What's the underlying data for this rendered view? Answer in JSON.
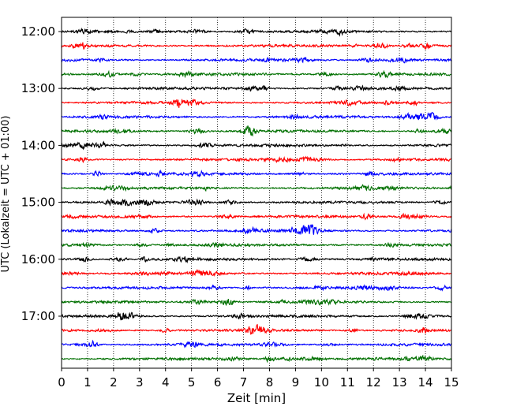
{
  "chart_data": {
    "type": "line",
    "title": "",
    "xlabel": "Zeit  [min]",
    "ylabel": "UTC (Lokalzeit = UTC + 01:00)",
    "xlim": [
      0,
      15
    ],
    "x_ticks": [
      0,
      1,
      2,
      3,
      4,
      5,
      6,
      7,
      8,
      9,
      10,
      11,
      12,
      13,
      14,
      15
    ],
    "y_tick_labels": [
      "12:00",
      "13:00",
      "14:00",
      "15:00",
      "16:00",
      "17:00"
    ],
    "grid": "vertical dotted",
    "trace_interval_minutes": 15,
    "traces": [
      {
        "start": "12:00",
        "color": "#000000"
      },
      {
        "start": "12:15",
        "color": "#ff0000"
      },
      {
        "start": "12:30",
        "color": "#0000ff"
      },
      {
        "start": "12:45",
        "color": "#007000"
      },
      {
        "start": "13:00",
        "color": "#000000"
      },
      {
        "start": "13:15",
        "color": "#ff0000"
      },
      {
        "start": "13:30",
        "color": "#0000ff"
      },
      {
        "start": "13:45",
        "color": "#007000"
      },
      {
        "start": "14:00",
        "color": "#000000"
      },
      {
        "start": "14:15",
        "color": "#ff0000"
      },
      {
        "start": "14:30",
        "color": "#0000ff"
      },
      {
        "start": "14:45",
        "color": "#007000"
      },
      {
        "start": "15:00",
        "color": "#000000"
      },
      {
        "start": "15:15",
        "color": "#ff0000"
      },
      {
        "start": "15:30",
        "color": "#0000ff"
      },
      {
        "start": "15:45",
        "color": "#007000"
      },
      {
        "start": "16:00",
        "color": "#000000"
      },
      {
        "start": "16:15",
        "color": "#ff0000"
      },
      {
        "start": "16:30",
        "color": "#0000ff"
      },
      {
        "start": "16:45",
        "color": "#007000"
      },
      {
        "start": "17:00",
        "color": "#000000"
      },
      {
        "start": "17:15",
        "color": "#ff0000"
      },
      {
        "start": "17:30",
        "color": "#0000ff"
      },
      {
        "start": "17:45",
        "color": "#007000"
      }
    ]
  }
}
